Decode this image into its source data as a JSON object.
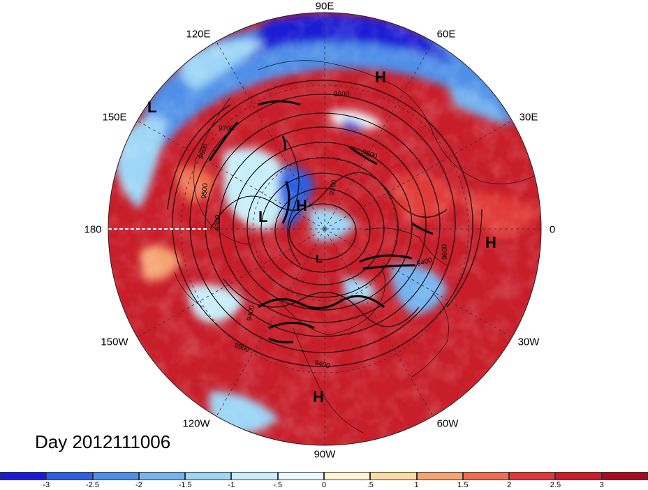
{
  "date_label": "Day 2012111006",
  "longitude_labels": {
    "e90": "90E",
    "e60": "60E",
    "e30": "30E",
    "zero": "0",
    "w30": "30W",
    "w60": "60W",
    "w90": "90W",
    "w120": "120W",
    "w150": "150W",
    "dateline": "180",
    "e150": "150E",
    "e120": "120E"
  },
  "pressure_systems": [
    {
      "type": "H"
    },
    {
      "type": "H"
    },
    {
      "type": "H"
    },
    {
      "type": "H"
    },
    {
      "type": "L"
    },
    {
      "type": "L"
    },
    {
      "type": "L"
    }
  ],
  "contour_labels": [
    "9600",
    "9700",
    "9600",
    "9500",
    "9800",
    "9400",
    "9500",
    "9400",
    "9600",
    "9400",
    "9300",
    "9200"
  ],
  "colorbar": {
    "ticks": [
      "-3",
      "-2.5",
      "-2",
      "-1.5",
      "-1",
      "-.5",
      "0",
      ".5",
      "1",
      "1.5",
      "2",
      "2.5",
      "3"
    ],
    "colors": [
      "#1a1ad6",
      "#2d5fe0",
      "#4f8fe8",
      "#74b4f0",
      "#9dd6f7",
      "#c8eefb",
      "#eaf8fd",
      "#fff5d6",
      "#fcdca4",
      "#f6a472",
      "#ee6f50",
      "#e03a38",
      "#c81e2a",
      "#a60c1e"
    ]
  }
}
